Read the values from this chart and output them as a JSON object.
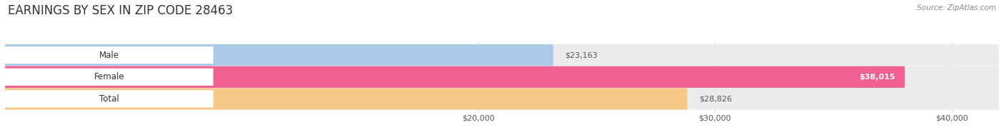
{
  "title": "EARNINGS BY SEX IN ZIP CODE 28463",
  "source": "Source: ZipAtlas.com",
  "categories": [
    "Male",
    "Female",
    "Total"
  ],
  "values": [
    23163,
    38015,
    28826
  ],
  "bar_colors": [
    "#adc9e8",
    "#f06090",
    "#f5c98a"
  ],
  "bar_bg_color": "#ebebeb",
  "value_labels": [
    "$23,163",
    "$38,015",
    "$28,826"
  ],
  "value_label_inside": [
    false,
    true,
    false
  ],
  "xmin": 0,
  "xmax": 42000,
  "xticks": [
    20000,
    30000,
    40000
  ],
  "xtick_labels": [
    "$20,000",
    "$30,000",
    "$40,000"
  ],
  "title_fontsize": 12,
  "bar_height": 0.52,
  "background_color": "#ffffff",
  "grid_color": "#d8d8d8"
}
